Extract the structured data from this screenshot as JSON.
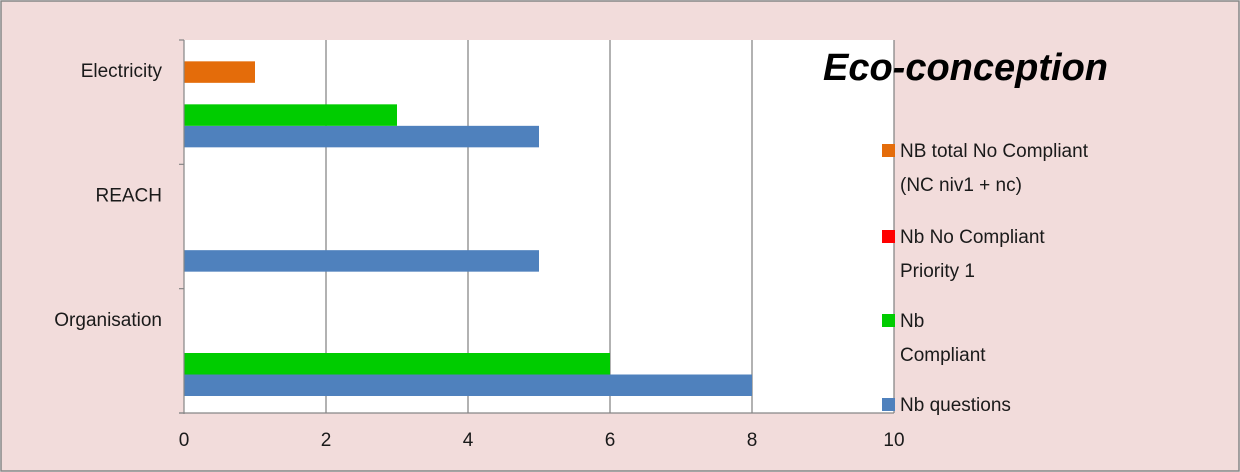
{
  "chart_data": {
    "type": "bar",
    "orientation": "horizontal",
    "title": "Eco-conception",
    "categories": [
      "Organisation",
      "REACH",
      "Electricity"
    ],
    "series": [
      {
        "name": "Nb questions",
        "color": "#4f81bd",
        "values": [
          8,
          5,
          5
        ]
      },
      {
        "name": "Nb Compliant",
        "legend_lines": [
          "Nb",
          "Compliant"
        ],
        "color": "#00cc00",
        "values": [
          6,
          0,
          3
        ]
      },
      {
        "name": "Nb No Compliant Priority 1",
        "legend_lines": [
          "Nb  No Compliant",
          "Priority 1"
        ],
        "color": "#ff0000",
        "values": [
          0,
          0,
          0
        ]
      },
      {
        "name": "NB total No Compliant (NC niv1 + nc)",
        "legend_lines": [
          "NB total  No Compliant",
          "(NC niv1 + nc)"
        ],
        "color": "#e46c0a",
        "values": [
          0,
          0,
          1
        ]
      }
    ],
    "xlim": [
      0,
      10
    ],
    "xticks": [
      "0",
      "2",
      "4",
      "6",
      "8",
      "10"
    ],
    "grid": "vertical",
    "legend_position": "right",
    "legend_order": [
      3,
      2,
      1,
      0
    ],
    "background_color": "#f2dcdb",
    "plot_background_color": "#ffffff",
    "gridline_color": "#7f7f7f"
  }
}
